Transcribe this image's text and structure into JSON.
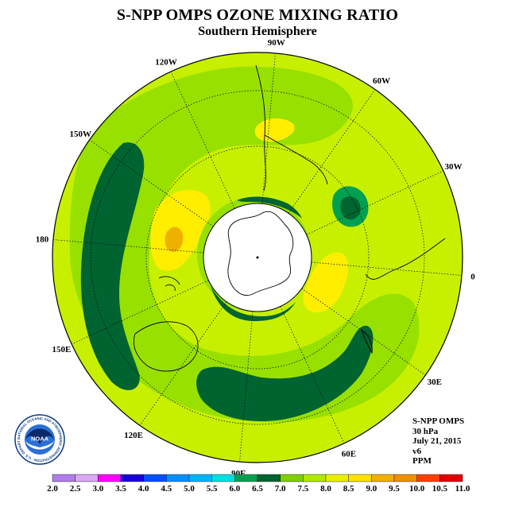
{
  "title": "S-NPP OMPS OZONE MIXING RATIO",
  "subtitle": "Southern Hemisphere",
  "longitude_labels": [
    {
      "text": "0",
      "lon": 0
    },
    {
      "text": "30E",
      "lon": 30
    },
    {
      "text": "60E",
      "lon": 60
    },
    {
      "text": "90E",
      "lon": 90
    },
    {
      "text": "120E",
      "lon": 120
    },
    {
      "text": "150E",
      "lon": 150
    },
    {
      "text": "180",
      "lon": 180
    },
    {
      "text": "150W",
      "lon": -150
    },
    {
      "text": "120W",
      "lon": -120
    },
    {
      "text": "90W",
      "lon": -90
    },
    {
      "text": "60W",
      "lon": -60
    },
    {
      "text": "30W",
      "lon": -30
    }
  ],
  "info": {
    "instrument": "S-NPP OMPS",
    "level": "30 hPa",
    "date": "July 21, 2015",
    "version": "v6",
    "units": "PPM"
  },
  "logo": {
    "text": "NOAA",
    "ring_text": "NATIONAL OCEANIC AND ATMOSPHERIC ADMINISTRATION · U.S. DEPARTMENT OF COMMERCE"
  },
  "colorbar": {
    "ticks": [
      "2.0",
      "2.5",
      "3.0",
      "3.5",
      "4.0",
      "4.5",
      "5.0",
      "5.5",
      "6.0",
      "6.5",
      "7.0",
      "7.5",
      "8.0",
      "8.5",
      "9.0",
      "9.5",
      "10.0",
      "10.5",
      "11.0"
    ],
    "colors": [
      "#b07ee8",
      "#d8a8f0",
      "#ff00ff",
      "#1a00d8",
      "#0050ff",
      "#0090ff",
      "#00b4ff",
      "#00e0e0",
      "#00a050",
      "#006430",
      "#80d000",
      "#b0e800",
      "#e8f000",
      "#ffe000",
      "#f0b000",
      "#f09000",
      "#ff4000",
      "#e00000",
      "#805030"
    ]
  },
  "colors": {
    "polar_night": "#ffffff",
    "bg_field": "#c7f000",
    "low_ozone": "#006430",
    "mid_low": "#80d000",
    "high": "#ffee00",
    "highest": "#f0b000"
  }
}
